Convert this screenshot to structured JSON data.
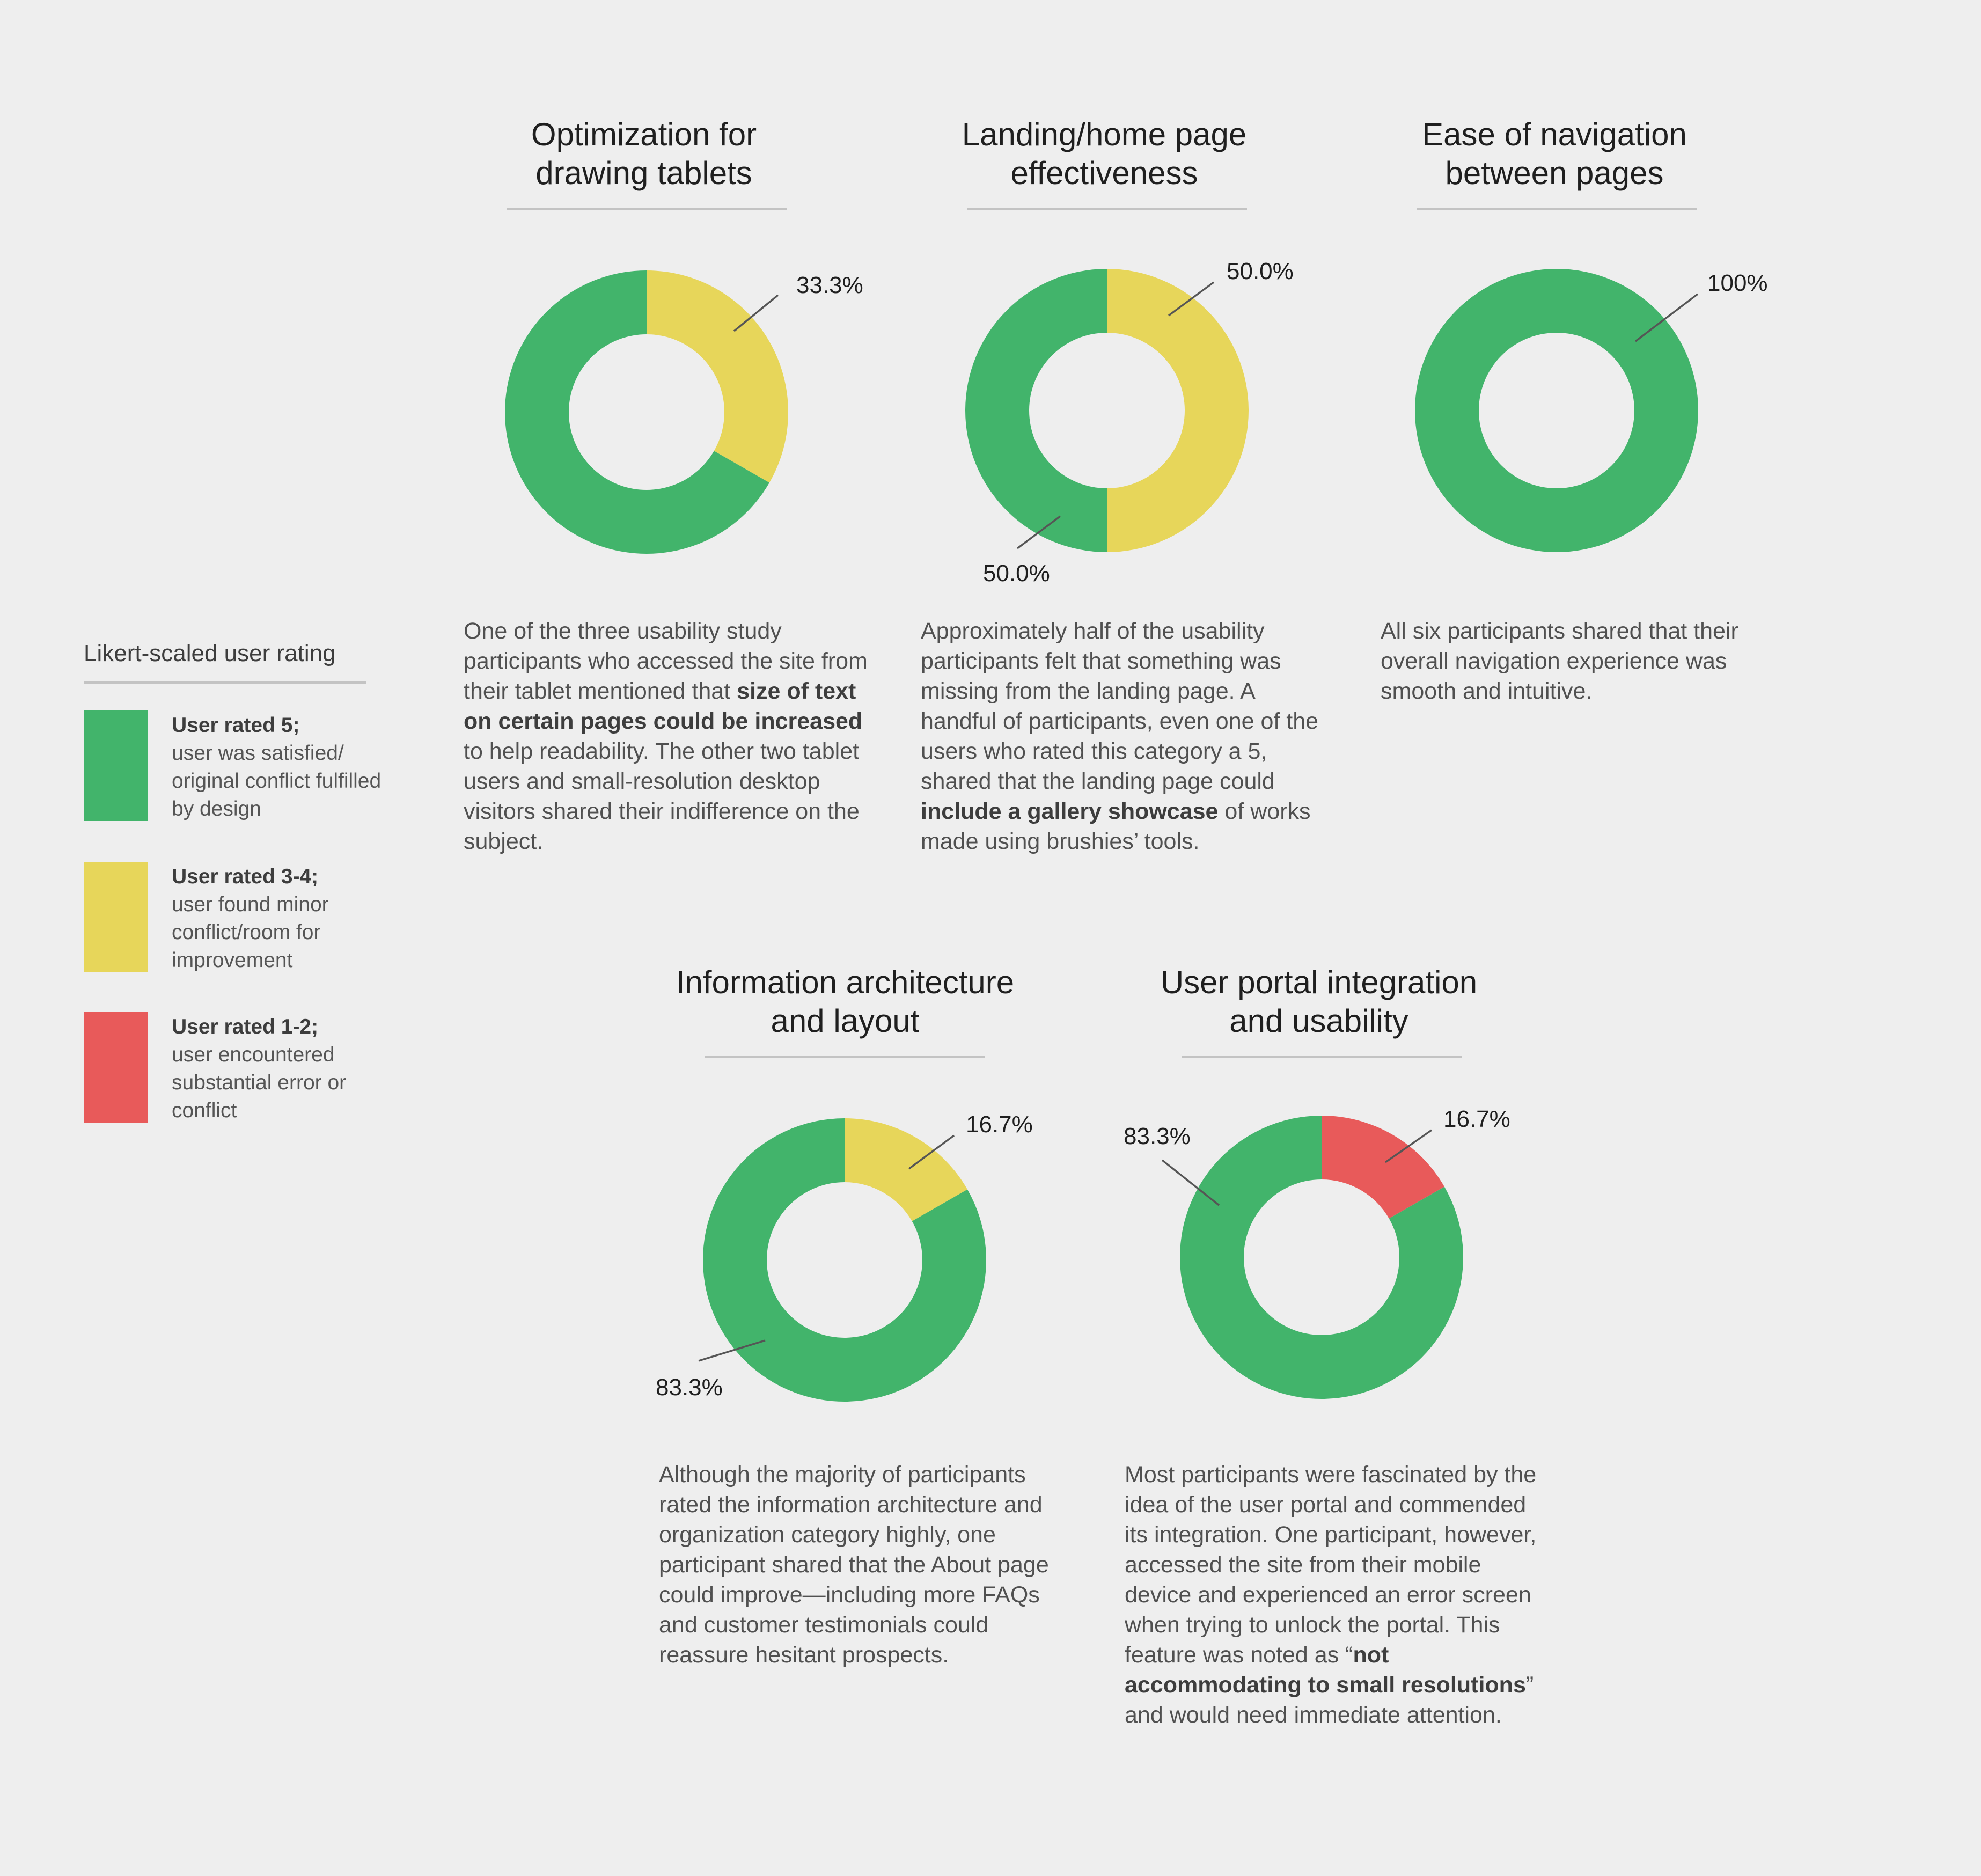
{
  "colors": {
    "green": "#42b46b",
    "yellow": "#e7d65a",
    "red": "#e85a5a",
    "background": "#eeeeee"
  },
  "legend": {
    "title": "Likert-scaled user rating",
    "items": [
      {
        "label": "User rated 5;",
        "description": "user was satisfied/ original conflict fulfilled by design",
        "color": "#42b46b"
      },
      {
        "label": "User rated 3-4;",
        "description": "user found minor conflict/room for improvement",
        "color": "#e7d65a"
      },
      {
        "label": "User rated 1-2;",
        "description": "user encountered substantial error or conflict",
        "color": "#e85a5a"
      }
    ]
  },
  "chart_data": [
    {
      "type": "pie",
      "title": "Optimization for\ndrawing tablets",
      "slices": [
        {
          "category": "User rated 3-4",
          "value": 33.3,
          "label": "33.3%",
          "color": "#e7d65a"
        },
        {
          "category": "User rated 5",
          "value": 66.7,
          "label": "",
          "color": "#42b46b"
        }
      ],
      "description": [
        {
          "t": "One of the three usability study participants who accessed the site from their tablet mentioned that "
        },
        {
          "t": "size of text on certain pages could be increased",
          "b": true
        },
        {
          "t": " to help readability. The other two tablet users and small-resolution desktop visitors shared their indifference on the subject."
        }
      ]
    },
    {
      "type": "pie",
      "title": "Landing/home page\neffectiveness",
      "slices": [
        {
          "category": "User rated 3-4",
          "value": 50.0,
          "label": "50.0%",
          "color": "#e7d65a"
        },
        {
          "category": "User rated 5",
          "value": 50.0,
          "label": "50.0%",
          "color": "#42b46b"
        }
      ],
      "description": [
        {
          "t": "Approximately half of the usability participants felt that something was missing from the landing page. A handful of participants, even one of the users who rated this category a 5, shared that the landing page could "
        },
        {
          "t": "include a gallery showcase",
          "b": true
        },
        {
          "t": " of works made using brushies’ tools."
        }
      ]
    },
    {
      "type": "pie",
      "title": "Ease of navigation\nbetween pages",
      "slices": [
        {
          "category": "User rated 5",
          "value": 100,
          "label": "100%",
          "color": "#42b46b"
        }
      ],
      "description": [
        {
          "t": "All six participants shared that their overall navigation experience was smooth and intuitive."
        }
      ]
    },
    {
      "type": "pie",
      "title": "Information architecture\nand layout",
      "slices": [
        {
          "category": "User rated 3-4",
          "value": 16.7,
          "label": "16.7%",
          "color": "#e7d65a"
        },
        {
          "category": "User rated 5",
          "value": 83.3,
          "label": "83.3%",
          "color": "#42b46b"
        }
      ],
      "description": [
        {
          "t": "Although the majority of participants rated the information architecture and organization category highly, one participant shared that the About page could improve—including more FAQs and customer testimonials could reassure hesitant prospects."
        }
      ]
    },
    {
      "type": "pie",
      "title": "User portal integration\nand usability",
      "slices": [
        {
          "category": "User rated 1-2",
          "value": 16.7,
          "label": "16.7%",
          "color": "#e85a5a"
        },
        {
          "category": "User rated 5",
          "value": 83.3,
          "label": "83.3%",
          "color": "#42b46b"
        }
      ],
      "description": [
        {
          "t": "Most participants were fascinated by the idea of the user portal and commended its integration. One participant, however, accessed the site from their mobile device and experienced an error screen when trying to unlock the portal. This feature was noted as “"
        },
        {
          "t": "not accommodating to small resolutions",
          "b": true
        },
        {
          "t": "” and would need immediate attention."
        }
      ]
    }
  ]
}
